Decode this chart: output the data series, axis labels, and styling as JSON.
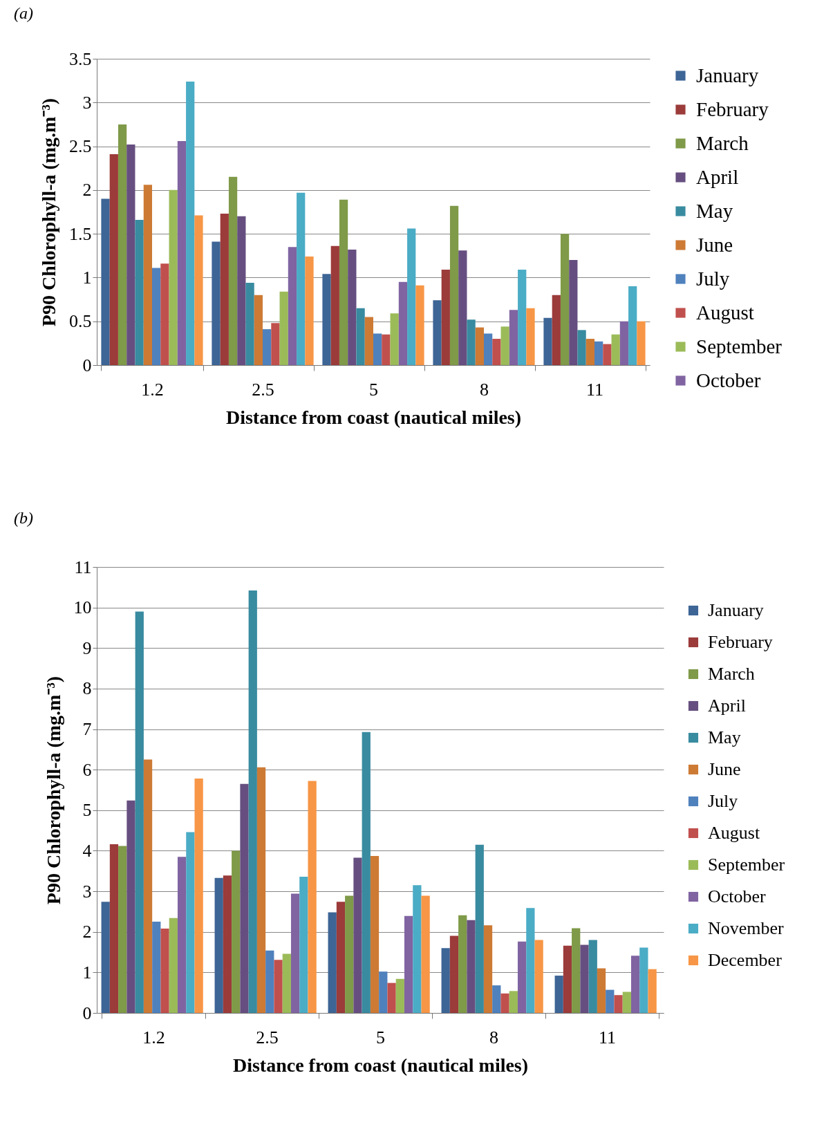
{
  "chart_data": [
    {
      "type": "bar",
      "title": "(a)",
      "xlabel": "Distance from coast (nautical miles)",
      "ylabel": "P90 Chlorophyll-a (mg.m⁻³)",
      "categories": [
        "1.2",
        "2.5",
        "5",
        "8",
        "11"
      ],
      "series": [
        {
          "name": "January",
          "color": "#3d6596",
          "values": [
            1.9,
            1.41,
            1.04,
            0.74,
            0.54
          ]
        },
        {
          "name": "February",
          "color": "#9b3b3a",
          "values": [
            2.41,
            1.73,
            1.36,
            1.09,
            0.8
          ]
        },
        {
          "name": "March",
          "color": "#7f9a48",
          "values": [
            2.75,
            2.15,
            1.89,
            1.82,
            1.5
          ]
        },
        {
          "name": "April",
          "color": "#664f80",
          "values": [
            2.52,
            1.7,
            1.32,
            1.31,
            1.2
          ]
        },
        {
          "name": "May",
          "color": "#398ba0",
          "values": [
            1.66,
            0.94,
            0.65,
            0.52,
            0.4
          ]
        },
        {
          "name": "June",
          "color": "#cd7a35",
          "values": [
            2.06,
            0.8,
            0.55,
            0.43,
            0.3
          ]
        },
        {
          "name": "July",
          "color": "#4f81bd",
          "values": [
            1.11,
            0.41,
            0.36,
            0.36,
            0.27
          ]
        },
        {
          "name": "August",
          "color": "#c0504d",
          "values": [
            1.16,
            0.48,
            0.35,
            0.3,
            0.24
          ]
        },
        {
          "name": "September",
          "color": "#9bbb59",
          "values": [
            2.0,
            0.84,
            0.59,
            0.44,
            0.35
          ]
        },
        {
          "name": "October",
          "color": "#8064a2",
          "values": [
            2.56,
            1.35,
            0.95,
            0.63,
            0.5
          ]
        },
        {
          "color": "#4bacc6",
          "values": [
            3.24,
            1.97,
            1.56,
            1.09,
            0.9
          ]
        },
        {
          "color": "#f79646",
          "values": [
            1.71,
            1.24,
            0.91,
            0.65,
            0.5
          ]
        }
      ],
      "ylim": [
        0,
        3.5
      ],
      "yticks": [
        0,
        0.5,
        1,
        1.5,
        2,
        2.5,
        3,
        3.5
      ],
      "grid": "y",
      "legend": "right"
    },
    {
      "type": "bar",
      "title": "(b)",
      "xlabel": "Distance from coast (nautical miles)",
      "ylabel": "P90 Chlorophyll-a (mg.m⁻³)",
      "categories": [
        "1.2",
        "2.5",
        "5",
        "8",
        "11"
      ],
      "series": [
        {
          "name": "January",
          "color": "#3d6596",
          "values": [
            2.74,
            3.33,
            2.48,
            1.6,
            0.92
          ]
        },
        {
          "name": "February",
          "color": "#9b3b3a",
          "values": [
            4.16,
            3.39,
            2.74,
            1.9,
            1.66
          ]
        },
        {
          "name": "March",
          "color": "#7f9a48",
          "values": [
            4.12,
            4.0,
            2.89,
            2.41,
            2.09
          ]
        },
        {
          "name": "April",
          "color": "#664f80",
          "values": [
            5.24,
            5.65,
            3.83,
            2.29,
            1.68
          ]
        },
        {
          "name": "May",
          "color": "#398ba0",
          "values": [
            9.9,
            10.42,
            6.93,
            4.15,
            1.8
          ]
        },
        {
          "name": "June",
          "color": "#cd7a35",
          "values": [
            6.25,
            6.06,
            3.87,
            2.16,
            1.1
          ]
        },
        {
          "name": "July",
          "color": "#4f81bd",
          "values": [
            2.25,
            1.54,
            1.02,
            0.68,
            0.57
          ]
        },
        {
          "name": "August",
          "color": "#c0504d",
          "values": [
            2.08,
            1.31,
            0.74,
            0.48,
            0.44
          ]
        },
        {
          "name": "September",
          "color": "#9bbb59",
          "values": [
            2.34,
            1.46,
            0.84,
            0.54,
            0.52
          ]
        },
        {
          "name": "October",
          "color": "#8064a2",
          "values": [
            3.85,
            2.94,
            2.39,
            1.76,
            1.41
          ]
        },
        {
          "name": "November",
          "color": "#4bacc6",
          "values": [
            4.46,
            3.36,
            3.15,
            2.59,
            1.61
          ]
        },
        {
          "name": "December",
          "color": "#f79646",
          "values": [
            5.78,
            5.72,
            2.89,
            1.8,
            1.08
          ]
        }
      ],
      "ylim": [
        0,
        11
      ],
      "yticks": [
        0,
        1,
        2,
        3,
        4,
        5,
        6,
        7,
        8,
        9,
        10,
        11
      ],
      "grid": "y",
      "legend": "right"
    }
  ]
}
